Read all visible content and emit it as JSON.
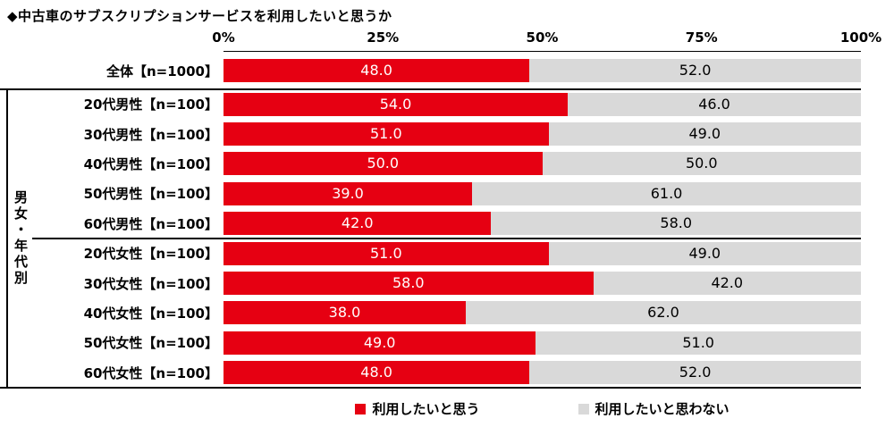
{
  "title": "◆中古車のサブスクリプションサービスを利用したいと思うか",
  "axis": {
    "ticks": [
      "0%",
      "25%",
      "50%",
      "75%",
      "100%"
    ]
  },
  "group_label": "男女・年代別",
  "legend": [
    {
      "label": "利用したいと思う",
      "color": "#e60012"
    },
    {
      "label": "利用したいと思わない",
      "color": "#d9d9d9"
    }
  ],
  "chart_data": {
    "type": "bar",
    "orientation": "horizontal",
    "stacked": true,
    "title": "◆中古車のサブスクリプションサービスを利用したいと思うか",
    "xlim": [
      0,
      100
    ],
    "x_ticks": [
      0,
      25,
      50,
      75,
      100
    ],
    "grid": false,
    "legend_position": "bottom",
    "value_labels": "inside",
    "categories": [
      "全体【n=1000】",
      "20代男性【n=100】",
      "30代男性【n=100】",
      "40代男性【n=100】",
      "50代男性【n=100】",
      "60代男性【n=100】",
      "20代女性【n=100】",
      "30代女性【n=100】",
      "40代女性【n=100】",
      "50代女性【n=100】",
      "60代女性【n=100】"
    ],
    "series": [
      {
        "name": "利用したいと思う",
        "color": "#e60012",
        "text_color": "#ffffff",
        "values": [
          48.0,
          54.0,
          51.0,
          50.0,
          39.0,
          42.0,
          51.0,
          58.0,
          38.0,
          49.0,
          48.0
        ]
      },
      {
        "name": "利用したいと思わない",
        "color": "#d9d9d9",
        "text_color": "#000000",
        "values": [
          52.0,
          46.0,
          49.0,
          50.0,
          61.0,
          58.0,
          49.0,
          42.0,
          62.0,
          51.0,
          52.0
        ]
      }
    ]
  }
}
